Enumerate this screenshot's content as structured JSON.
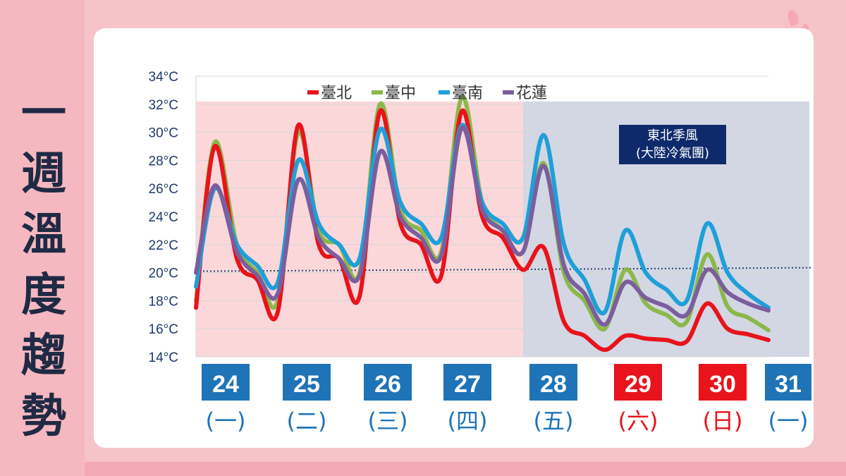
{
  "side_title": [
    "一",
    "週",
    "溫",
    "度",
    "趨",
    "勢"
  ],
  "colors": {
    "taipei": "#e8131b",
    "taichung": "#8bb84a",
    "tainan": "#1f9fd8",
    "hualien": "#7b5e9e",
    "weekday_box": "#1f73b7",
    "weekend_box": "#e8131b",
    "weekday_text": "#1f73b7",
    "weekend_text": "#e8131b",
    "shade_warm": "#fbd7da",
    "shade_cold": "#d3d7e4",
    "annotation_bg": "#0f2a6b"
  },
  "annotation": [
    "東北季風",
    "(大陸冷氣團)"
  ],
  "chart_data": {
    "type": "line",
    "title": "一週溫度趨勢",
    "ylim": [
      14,
      34
    ],
    "y_ticks": [
      "14°C",
      "16°C",
      "18°C",
      "20°C",
      "22°C",
      "24°C",
      "26°C",
      "28°C",
      "30°C",
      "32°C",
      "34°C"
    ],
    "x_range": [
      0,
      7
    ],
    "reference_line": {
      "start": 20.1,
      "end": 20.35
    },
    "days": [
      {
        "num": "24",
        "weekday": "(一)",
        "weekend": false
      },
      {
        "num": "25",
        "weekday": "(二)",
        "weekend": false
      },
      {
        "num": "26",
        "weekday": "(三)",
        "weekend": false
      },
      {
        "num": "27",
        "weekday": "(四)",
        "weekend": false
      },
      {
        "num": "28",
        "weekday": "(五)",
        "weekend": false
      },
      {
        "num": "29",
        "weekday": "(六)",
        "weekend": true
      },
      {
        "num": "30",
        "weekday": "(日)",
        "weekend": true
      },
      {
        "num": "31",
        "weekday": "(一)",
        "weekend": false
      }
    ],
    "shaded_regions": [
      {
        "from": 0,
        "to": 4.0,
        "kind": "warm"
      },
      {
        "from": 4.0,
        "to": 7.5,
        "kind": "cold"
      }
    ],
    "legend": [
      "臺北",
      "臺中",
      "臺南",
      "花蓮"
    ],
    "series": [
      {
        "name": "臺北",
        "key": "taipei",
        "x": [
          0,
          0.23,
          0.5,
          0.75,
          1.0,
          1.25,
          1.5,
          1.75,
          2.0,
          2.25,
          2.5,
          2.75,
          3.0,
          3.25,
          3.5,
          3.75,
          4.0,
          4.25,
          4.5,
          4.75,
          5.0,
          5.25,
          5.5,
          5.75,
          6.0,
          6.25,
          6.5,
          6.75,
          7.0
        ],
        "y": [
          17.5,
          29.0,
          21.0,
          19.5,
          17.2,
          30.5,
          22.0,
          21.0,
          18.3,
          31.5,
          23.5,
          22.0,
          19.8,
          31.5,
          24.0,
          22.5,
          20.2,
          21.8,
          16.5,
          15.5,
          14.5,
          15.5,
          15.3,
          15.2,
          15.1,
          17.8,
          16.0,
          15.6,
          15.2
        ]
      },
      {
        "name": "臺中",
        "key": "taichung",
        "x": [
          0,
          0.23,
          0.5,
          0.75,
          1.0,
          1.25,
          1.5,
          1.75,
          2.0,
          2.25,
          2.5,
          2.75,
          3.0,
          3.25,
          3.5,
          3.75,
          4.0,
          4.25,
          4.5,
          4.75,
          5.0,
          5.25,
          5.5,
          5.75,
          6.0,
          6.25,
          6.5,
          6.75,
          7.0
        ],
        "y": [
          18.0,
          29.3,
          22.0,
          20.0,
          18.0,
          30.0,
          23.0,
          22.0,
          20.0,
          32.0,
          24.5,
          23.0,
          21.5,
          32.5,
          25.0,
          23.0,
          21.5,
          27.8,
          20.0,
          18.0,
          16.0,
          20.2,
          17.8,
          17.0,
          16.5,
          21.3,
          17.6,
          16.8,
          15.9
        ]
      },
      {
        "name": "臺南",
        "key": "tainan",
        "x": [
          0,
          0.23,
          0.5,
          0.75,
          1.0,
          1.25,
          1.5,
          1.75,
          2.0,
          2.25,
          2.5,
          2.75,
          3.0,
          3.25,
          3.5,
          3.75,
          4.0,
          4.25,
          4.5,
          4.75,
          5.0,
          5.25,
          5.5,
          5.75,
          6.0,
          6.25,
          6.5,
          6.75,
          7.0
        ],
        "y": [
          19.0,
          26.0,
          22.0,
          20.5,
          19.3,
          28.0,
          23.5,
          22.0,
          21.0,
          30.2,
          25.0,
          23.5,
          22.5,
          30.5,
          25.0,
          23.5,
          22.5,
          29.8,
          22.0,
          19.5,
          17.2,
          23.0,
          20.0,
          18.8,
          18.0,
          23.5,
          20.0,
          18.5,
          17.5
        ]
      },
      {
        "name": "花蓮",
        "key": "hualien",
        "x": [
          0,
          0.23,
          0.5,
          0.75,
          1.0,
          1.25,
          1.5,
          1.75,
          2.0,
          2.25,
          2.5,
          2.75,
          3.0,
          3.25,
          3.5,
          3.75,
          4.0,
          4.25,
          4.5,
          4.75,
          5.0,
          5.25,
          5.5,
          5.75,
          6.0,
          6.25,
          6.5,
          6.75,
          7.0
        ],
        "y": [
          20.0,
          26.2,
          21.5,
          19.8,
          18.5,
          26.6,
          22.5,
          21.0,
          19.8,
          28.6,
          24.0,
          22.5,
          21.2,
          30.3,
          24.5,
          23.0,
          21.5,
          27.6,
          20.5,
          18.5,
          16.3,
          19.3,
          18.2,
          17.6,
          17.0,
          20.2,
          18.6,
          17.8,
          17.3
        ]
      }
    ]
  }
}
